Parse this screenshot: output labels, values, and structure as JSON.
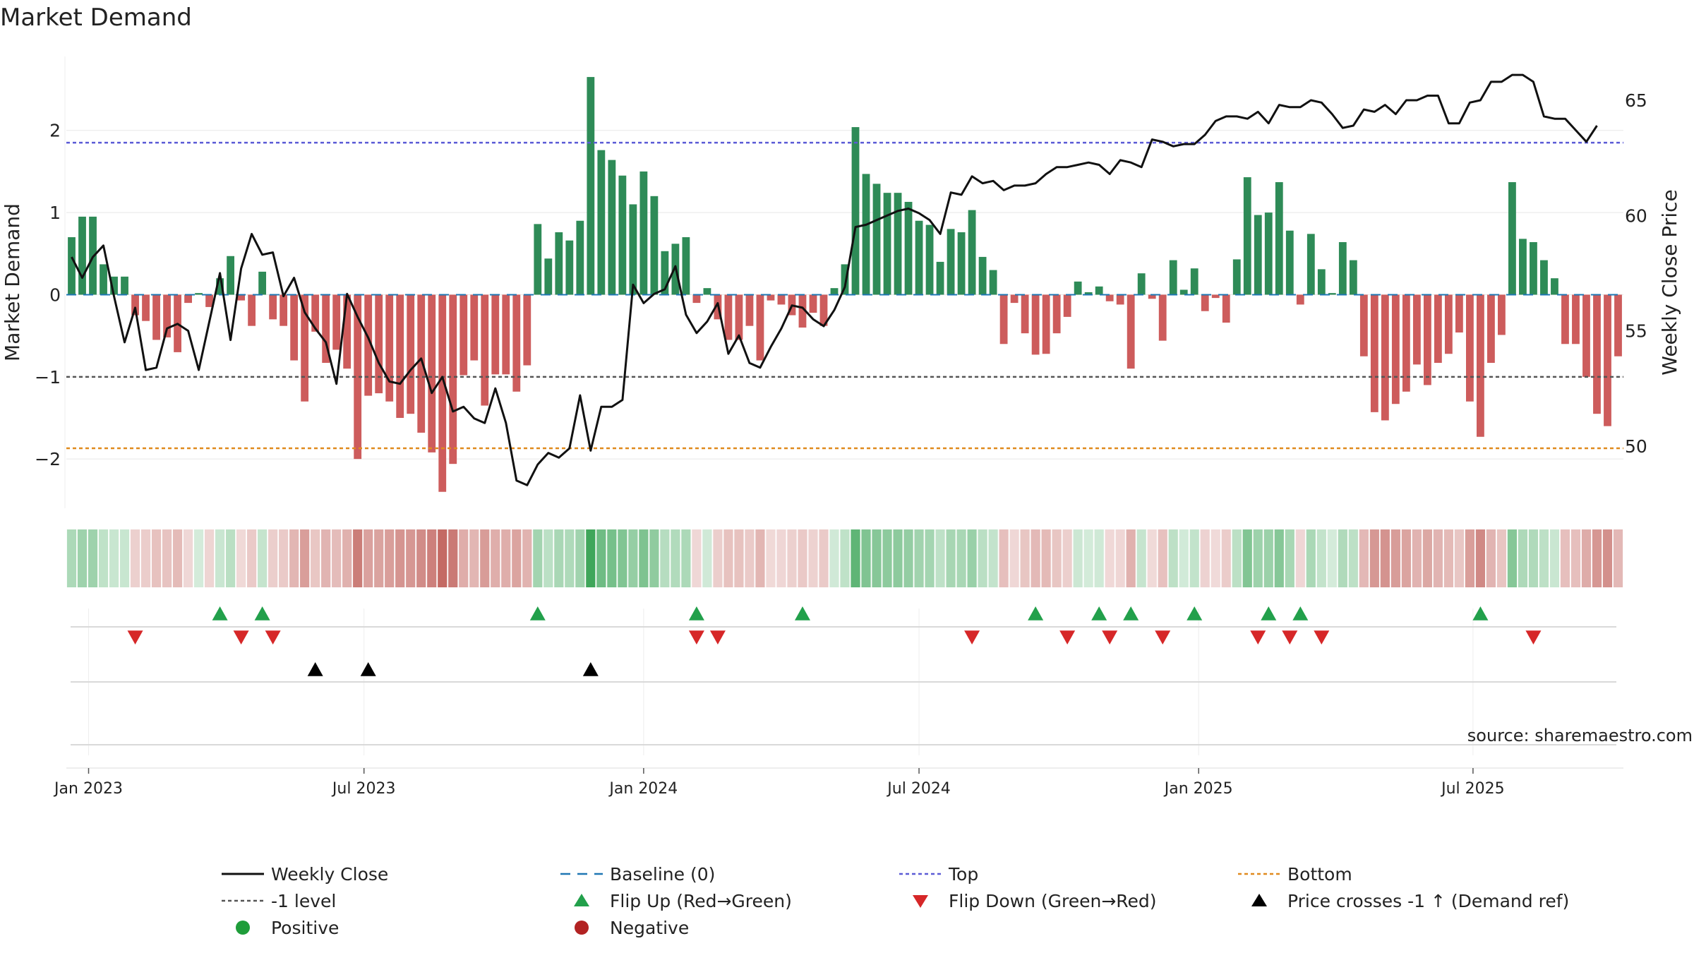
{
  "title": "Market Demand",
  "source": "source: sharemaestro.com",
  "colors": {
    "positive": "#2e8b57",
    "negative": "#cd5c5c",
    "top": "#5b5bd6",
    "bottom": "#e08a1e",
    "level": "#555555",
    "baseline": "#1f77b4",
    "flip_up": "#22a04b",
    "flip_down": "#d62728",
    "cross": "#000000"
  },
  "chart_data": {
    "type": "bar",
    "ylabel": "Market Demand",
    "ylabel_right": "Weekly Close Price",
    "ylim": [
      -2.6,
      2.9
    ],
    "ylim_right": [
      47.3,
      66.9
    ],
    "yticks": [
      {
        "value": 2,
        "label": "2"
      },
      {
        "value": 1,
        "label": "1"
      },
      {
        "value": 0,
        "label": "0"
      },
      {
        "value": -1,
        "label": "−1"
      },
      {
        "value": -2,
        "label": "−2"
      }
    ],
    "yticks_right": [
      {
        "value": 65,
        "label": "65"
      },
      {
        "value": 60,
        "label": "60"
      },
      {
        "value": 55,
        "label": "55"
      },
      {
        "value": 50,
        "label": "50"
      }
    ],
    "x_ticks": [
      {
        "label": "Jan 2023",
        "index": 1.6
      },
      {
        "label": "Jul 2023",
        "index": 27.6
      },
      {
        "label": "Jan 2024",
        "index": 54
      },
      {
        "label": "Jul 2024",
        "index": 80
      },
      {
        "label": "Jan 2025",
        "index": 106.4
      },
      {
        "label": "Jul 2025",
        "index": 132.3
      }
    ],
    "reference_lines": {
      "top": 1.85,
      "level": -1.0,
      "bottom": -1.87,
      "baseline": 0
    },
    "demand": [
      0.7,
      0.95,
      0.95,
      0.37,
      0.22,
      0.22,
      -0.25,
      -0.32,
      -0.55,
      -0.52,
      -0.7,
      -0.1,
      0.02,
      -0.15,
      0.2,
      0.47,
      -0.07,
      -0.38,
      0.28,
      -0.3,
      -0.38,
      -0.8,
      -1.3,
      -0.45,
      -0.83,
      -0.67,
      -0.9,
      -2.0,
      -1.23,
      -1.2,
      -1.3,
      -1.5,
      -1.45,
      -1.68,
      -1.92,
      -2.4,
      -2.06,
      -0.98,
      -0.8,
      -1.35,
      -0.97,
      -0.97,
      -1.18,
      -0.86,
      0.86,
      0.44,
      0.76,
      0.66,
      0.9,
      2.65,
      1.76,
      1.64,
      1.45,
      1.1,
      1.5,
      1.2,
      0.53,
      0.62,
      0.7,
      -0.1,
      0.08,
      -0.3,
      -0.55,
      -0.55,
      -0.38,
      -0.8,
      -0.07,
      -0.12,
      -0.25,
      -0.4,
      -0.22,
      -0.38,
      0.08,
      0.37,
      2.04,
      1.47,
      1.35,
      1.24,
      1.24,
      1.13,
      0.9,
      0.85,
      0.4,
      0.8,
      0.76,
      1.03,
      0.46,
      0.3,
      -0.6,
      -0.1,
      -0.47,
      -0.73,
      -0.72,
      -0.47,
      -0.27,
      0.16,
      0.03,
      0.1,
      -0.08,
      -0.12,
      -0.9,
      0.26,
      -0.05,
      -0.56,
      0.42,
      0.06,
      0.32,
      -0.2,
      -0.04,
      -0.34,
      0.43,
      1.43,
      0.97,
      1.0,
      1.37,
      0.78,
      -0.12,
      0.74,
      0.31,
      0.02,
      0.64,
      0.42,
      -0.75,
      -1.43,
      -1.53,
      -1.33,
      -1.18,
      -0.85,
      -1.1,
      -0.83,
      -0.72,
      -0.46,
      -1.3,
      -1.73,
      -0.83,
      -0.49,
      1.37,
      0.68,
      0.64,
      0.42,
      0.2,
      -0.6,
      -0.6,
      -1.0,
      -1.45,
      -1.6,
      -0.75
    ],
    "price": [
      58.2,
      57.3,
      58.2,
      58.7,
      56.5,
      54.5,
      56.0,
      53.3,
      53.4,
      55.1,
      55.3,
      55.0,
      53.3,
      55.4,
      57.5,
      54.6,
      57.7,
      59.2,
      58.3,
      58.4,
      56.5,
      57.3,
      55.8,
      55.1,
      54.5,
      52.7,
      56.6,
      55.6,
      54.7,
      53.6,
      52.8,
      52.7,
      53.3,
      53.8,
      52.3,
      53.0,
      51.5,
      51.7,
      51.2,
      51.0,
      52.5,
      51.0,
      48.5,
      48.3,
      49.2,
      49.7,
      49.5,
      49.9,
      52.2,
      49.8,
      51.7,
      51.7,
      52.0,
      57.0,
      56.2,
      56.6,
      56.8,
      57.8,
      55.7,
      54.9,
      55.4,
      56.2,
      54.0,
      54.8,
      53.6,
      53.4,
      54.3,
      55.1,
      56.1,
      56.0,
      55.5,
      55.2,
      55.9,
      56.9,
      59.5,
      59.6,
      59.8,
      60.0,
      60.2,
      60.3,
      60.1,
      59.8,
      59.2,
      61.0,
      60.9,
      61.7,
      61.4,
      61.5,
      61.1,
      61.3,
      61.3,
      61.4,
      61.8,
      62.1,
      62.1,
      62.2,
      62.3,
      62.2,
      61.8,
      62.4,
      62.3,
      62.1,
      63.3,
      63.2,
      63.0,
      63.1,
      63.1,
      63.5,
      64.1,
      64.3,
      64.3,
      64.2,
      64.5,
      64.0,
      64.8,
      64.7,
      64.7,
      65.0,
      64.9,
      64.4,
      63.8,
      63.9,
      64.6,
      64.5,
      64.8,
      64.4,
      65.0,
      65.0,
      65.2,
      65.2,
      64.0,
      64.0,
      64.9,
      65.0,
      65.8,
      65.8,
      66.1,
      66.1,
      65.8,
      64.3,
      64.2,
      64.2,
      63.7,
      63.2,
      63.9
    ],
    "flip_up": [
      14,
      18,
      44,
      59,
      69,
      91,
      97,
      100,
      106,
      113,
      116,
      133
    ],
    "flip_down": [
      6,
      16,
      19,
      59,
      61,
      85,
      94,
      98,
      103,
      112,
      115,
      118,
      138
    ],
    "price_crosses": [
      23,
      28,
      49
    ]
  },
  "legend": {
    "items": [
      {
        "key": "weekly_close",
        "label": "Weekly Close"
      },
      {
        "key": "baseline",
        "label": "Baseline (0)"
      },
      {
        "key": "top",
        "label": "Top"
      },
      {
        "key": "bottom",
        "label": "Bottom"
      },
      {
        "key": "level",
        "label": "-1 level"
      },
      {
        "key": "flip_up",
        "label": "Flip Up (Red→Green)"
      },
      {
        "key": "flip_down",
        "label": "Flip Down (Green→Red)"
      },
      {
        "key": "cross",
        "label": "Price crosses -1 ↑ (Demand ref)"
      },
      {
        "key": "positive",
        "label": "Positive"
      },
      {
        "key": "negative",
        "label": "Negative"
      }
    ]
  }
}
